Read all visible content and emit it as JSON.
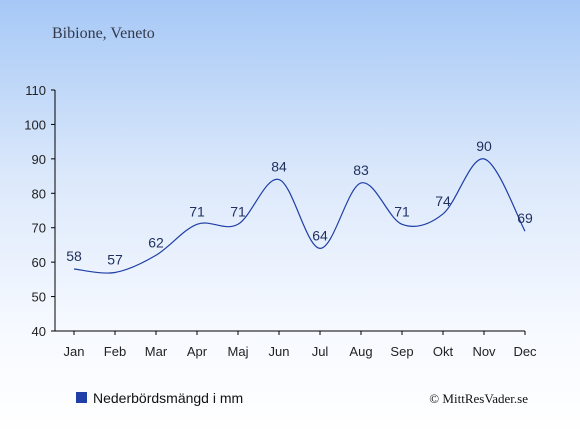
{
  "chart_data": {
    "type": "line",
    "title": "Bibione, Veneto",
    "categories": [
      "Jan",
      "Feb",
      "Mar",
      "Apr",
      "Maj",
      "Jun",
      "Jul",
      "Aug",
      "Sep",
      "Okt",
      "Nov",
      "Dec"
    ],
    "series": [
      {
        "name": "Nederbördsmängd i mm",
        "values": [
          58,
          57,
          62,
          71,
          71,
          84,
          64,
          83,
          71,
          74,
          90,
          69
        ],
        "color": "#1f3fa6"
      }
    ],
    "ylim": [
      40,
      110
    ],
    "yticks": [
      40,
      50,
      60,
      70,
      80,
      90,
      100,
      110
    ],
    "grid": false,
    "legend": "bottom-left"
  },
  "credit": "© MittResVader.se"
}
